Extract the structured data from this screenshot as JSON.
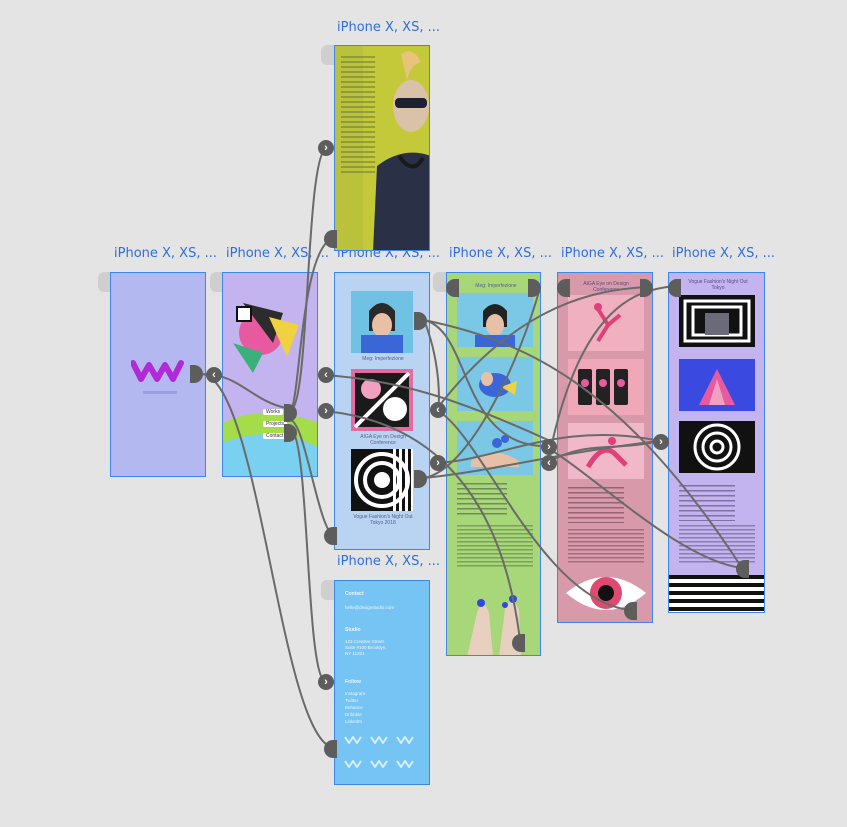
{
  "artboards": [
    {
      "id": "top",
      "title": "iPhone X, XS, ..."
    },
    {
      "id": "a1",
      "title": "iPhone X, XS, ..."
    },
    {
      "id": "a2",
      "title": "iPhone X, XS, ..."
    },
    {
      "id": "a3",
      "title": "iPhone X, XS, ..."
    },
    {
      "id": "a4",
      "title": "iPhone X, XS, ..."
    },
    {
      "id": "a5",
      "title": "iPhone X, XS, ..."
    },
    {
      "id": "a6",
      "title": "iPhone X, XS, ..."
    },
    {
      "id": "bottom",
      "title": "iPhone X, XS, ..."
    }
  ],
  "list_screen": {
    "item1": "Meg: Imperfezione",
    "item2": "AIGA Eye on Design Conference",
    "item3": "Vogue Fashion's Night Out Tokyo 2018"
  },
  "detail_titles": {
    "meg": "Meg: Imperfezione",
    "aiga": "AIGA Eye on Design Conference",
    "vogue": "Vogue Fashion's Night Out Tokyo"
  },
  "contact_screen": {
    "contact": "Contact",
    "email": "hello@designstudio.com",
    "studio": "Studio",
    "address": "123 Creative Street Suite #100 Brooklyn, NY 11201",
    "follow": "Follow",
    "links": [
      "Instagram",
      "Twitter",
      "Behance",
      "Dribbble",
      "LinkedIn"
    ]
  },
  "menu_screen": {
    "items": [
      "Works",
      "Projects",
      "Contact"
    ]
  },
  "colors": {
    "title_blue": "#2f6fd6",
    "border_blue": "#3e86e8",
    "splash_lavender": "#b4b8f1",
    "logo_magenta": "#b02ad8",
    "wire_gray": "#5d5d5d"
  }
}
